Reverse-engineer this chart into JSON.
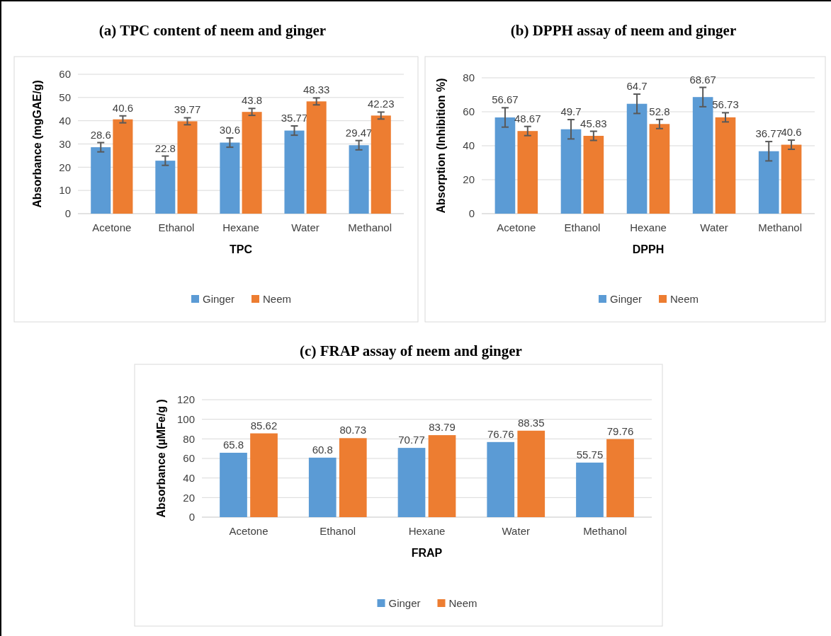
{
  "chart_data": [
    {
      "type": "bar",
      "title": "(a) TPC content of neem and ginger",
      "xlabel": "TPC",
      "ylabel": "Absorbance (mgGAE/g)",
      "categories": [
        "Acetone",
        "Ethanol",
        "Hexane",
        "Water",
        "Methanol"
      ],
      "ylim": [
        0,
        60
      ],
      "yticks": [
        0,
        10,
        20,
        30,
        40,
        50,
        60
      ],
      "grid": "y",
      "legend": "bottom",
      "data_labels": true,
      "series": [
        {
          "name": "Ginger",
          "color": "#5b9bd5",
          "values": [
            28.6,
            22.8,
            30.6,
            35.77,
            29.47
          ],
          "errors": [
            2,
            2,
            2,
            2,
            2
          ]
        },
        {
          "name": "Neem",
          "color": "#ed7d31",
          "values": [
            40.6,
            39.77,
            43.8,
            48.33,
            42.23
          ],
          "errors": [
            1.5,
            1.5,
            1.5,
            1.5,
            1.5
          ]
        }
      ]
    },
    {
      "type": "bar",
      "title": "(b) DPPH assay of neem and ginger",
      "xlabel": "DPPH",
      "ylabel": "Absorption (Inhibition %)",
      "categories": [
        "Acetone",
        "Ethanol",
        "Hexane",
        "Water",
        "Methanol"
      ],
      "ylim": [
        0,
        80
      ],
      "yticks": [
        0,
        20,
        40,
        60,
        80
      ],
      "grid": "y",
      "legend": "bottom",
      "data_labels": true,
      "series": [
        {
          "name": "Ginger",
          "color": "#5b9bd5",
          "values": [
            56.67,
            49.7,
            64.7,
            68.67,
            36.77
          ],
          "errors": [
            5.7,
            5.7,
            5.7,
            5.7,
            5.7
          ]
        },
        {
          "name": "Neem",
          "color": "#ed7d31",
          "values": [
            48.67,
            45.83,
            52.8,
            56.73,
            40.6
          ],
          "errors": [
            2.7,
            2.7,
            2.7,
            2.7,
            2.7
          ]
        }
      ]
    },
    {
      "type": "bar",
      "title": "(c) FRAP assay of neem and ginger",
      "xlabel": "FRAP",
      "ylabel": "Absorbance (µMFe/g )",
      "categories": [
        "Acetone",
        "Ethanol",
        "Hexane",
        "Water",
        "Methanol"
      ],
      "ylim": [
        0,
        120
      ],
      "yticks": [
        0,
        20,
        40,
        60,
        80,
        100,
        120
      ],
      "grid": "y",
      "legend": "bottom",
      "data_labels": true,
      "series": [
        {
          "name": "Ginger",
          "color": "#5b9bd5",
          "values": [
            65.8,
            60.8,
            70.77,
            76.76,
            55.75
          ]
        },
        {
          "name": "Neem",
          "color": "#ed7d31",
          "values": [
            85.62,
            80.73,
            83.79,
            88.35,
            79.76
          ]
        }
      ]
    }
  ]
}
